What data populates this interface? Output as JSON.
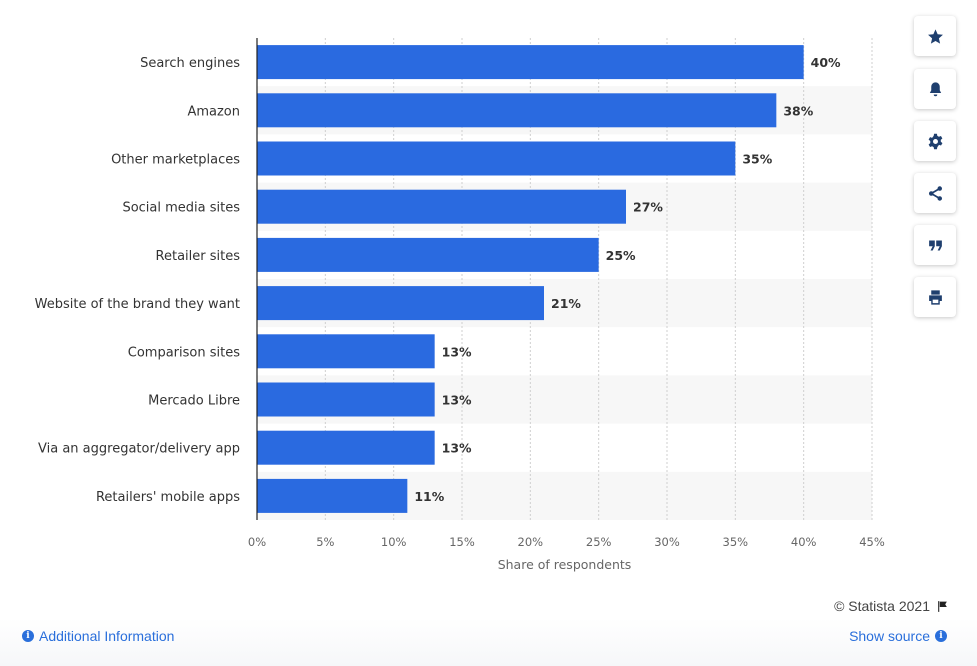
{
  "chart_data": {
    "type": "bar",
    "orientation": "horizontal",
    "categories": [
      "Search engines",
      "Amazon",
      "Other marketplaces",
      "Social media sites",
      "Retailer sites",
      "Website of the brand they want",
      "Comparison sites",
      "Mercado Libre",
      "Via an aggregator/delivery app",
      "Retailers' mobile apps"
    ],
    "values": [
      40,
      38,
      35,
      27,
      25,
      21,
      13,
      13,
      13,
      11
    ],
    "value_labels": [
      "40%",
      "38%",
      "35%",
      "27%",
      "25%",
      "21%",
      "13%",
      "13%",
      "13%",
      "11%"
    ],
    "xlabel": "Share of respondents",
    "xlim": [
      0,
      45
    ],
    "xticks": [
      "0%",
      "5%",
      "10%",
      "15%",
      "20%",
      "25%",
      "30%",
      "35%",
      "40%",
      "45%"
    ],
    "grid": "vertical dashed",
    "bar_color": "#2a6ae0",
    "legend": "none"
  },
  "sidebar_buttons": [
    {
      "icon": "star-icon"
    },
    {
      "icon": "bell-icon"
    },
    {
      "icon": "gear-icon"
    },
    {
      "icon": "share-icon"
    },
    {
      "icon": "quote-icon"
    },
    {
      "icon": "print-icon"
    }
  ],
  "footer": {
    "credit": "© Statista 2021",
    "additional_info": "Additional Information",
    "show_source": "Show source"
  },
  "colors": {
    "accent": "#2a6fdb",
    "bar": "#2a6ae0",
    "band": "#f7f7f7"
  }
}
